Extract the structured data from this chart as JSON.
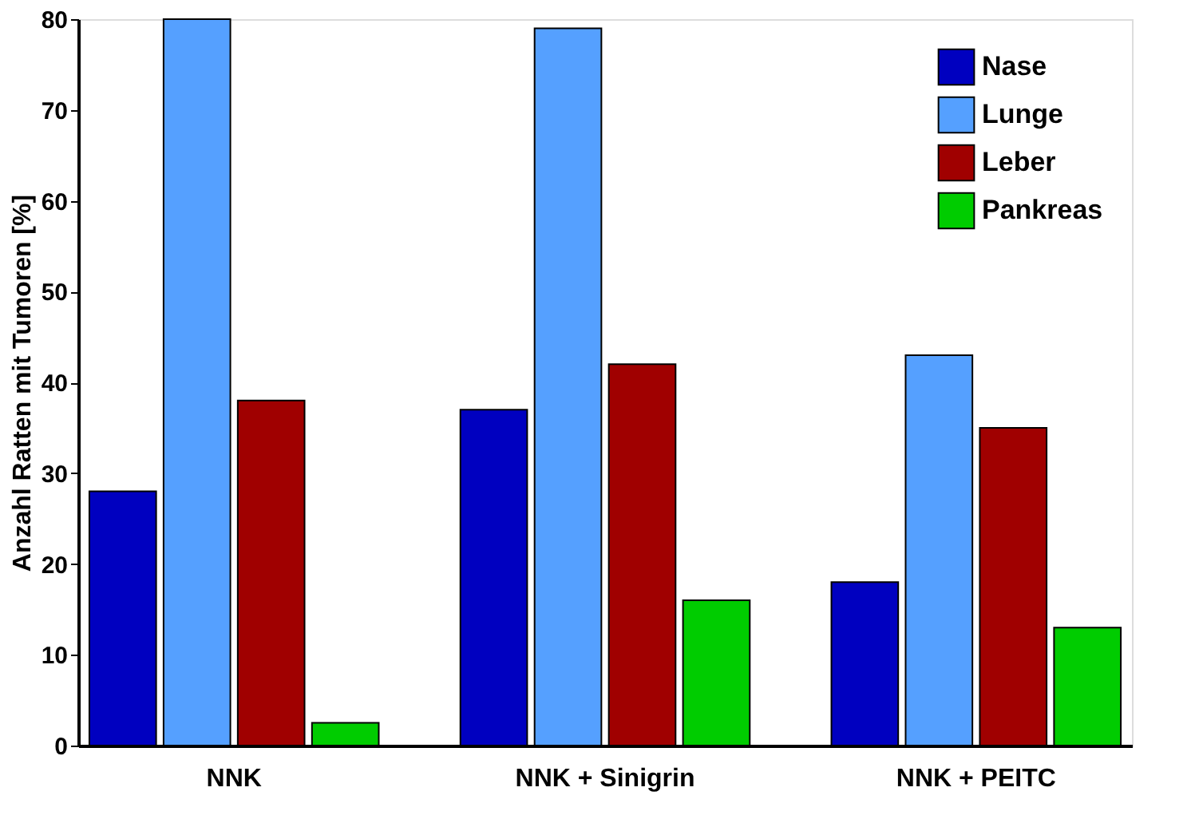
{
  "chart_data": {
    "type": "bar",
    "ylabel": "Anzahl Ratten mit Tumoren [%]",
    "categories": [
      "NNK",
      "NNK + Sinigrin",
      "NNK + PEITC"
    ],
    "series": [
      {
        "name": "Nase",
        "color": "#0000c0",
        "values": [
          28,
          37,
          18
        ]
      },
      {
        "name": "Lunge",
        "color": "#55a0ff",
        "values": [
          80,
          79,
          43
        ]
      },
      {
        "name": "Leber",
        "color": "#a00000",
        "values": [
          38,
          42,
          35
        ]
      },
      {
        "name": "Pankreas",
        "color": "#00cc00",
        "values": [
          2.5,
          16,
          13
        ]
      }
    ],
    "ylim": [
      0,
      80
    ],
    "yticks": [
      0,
      10,
      20,
      30,
      40,
      50,
      60,
      70,
      80
    ],
    "grid": false,
    "legend": "top right"
  }
}
